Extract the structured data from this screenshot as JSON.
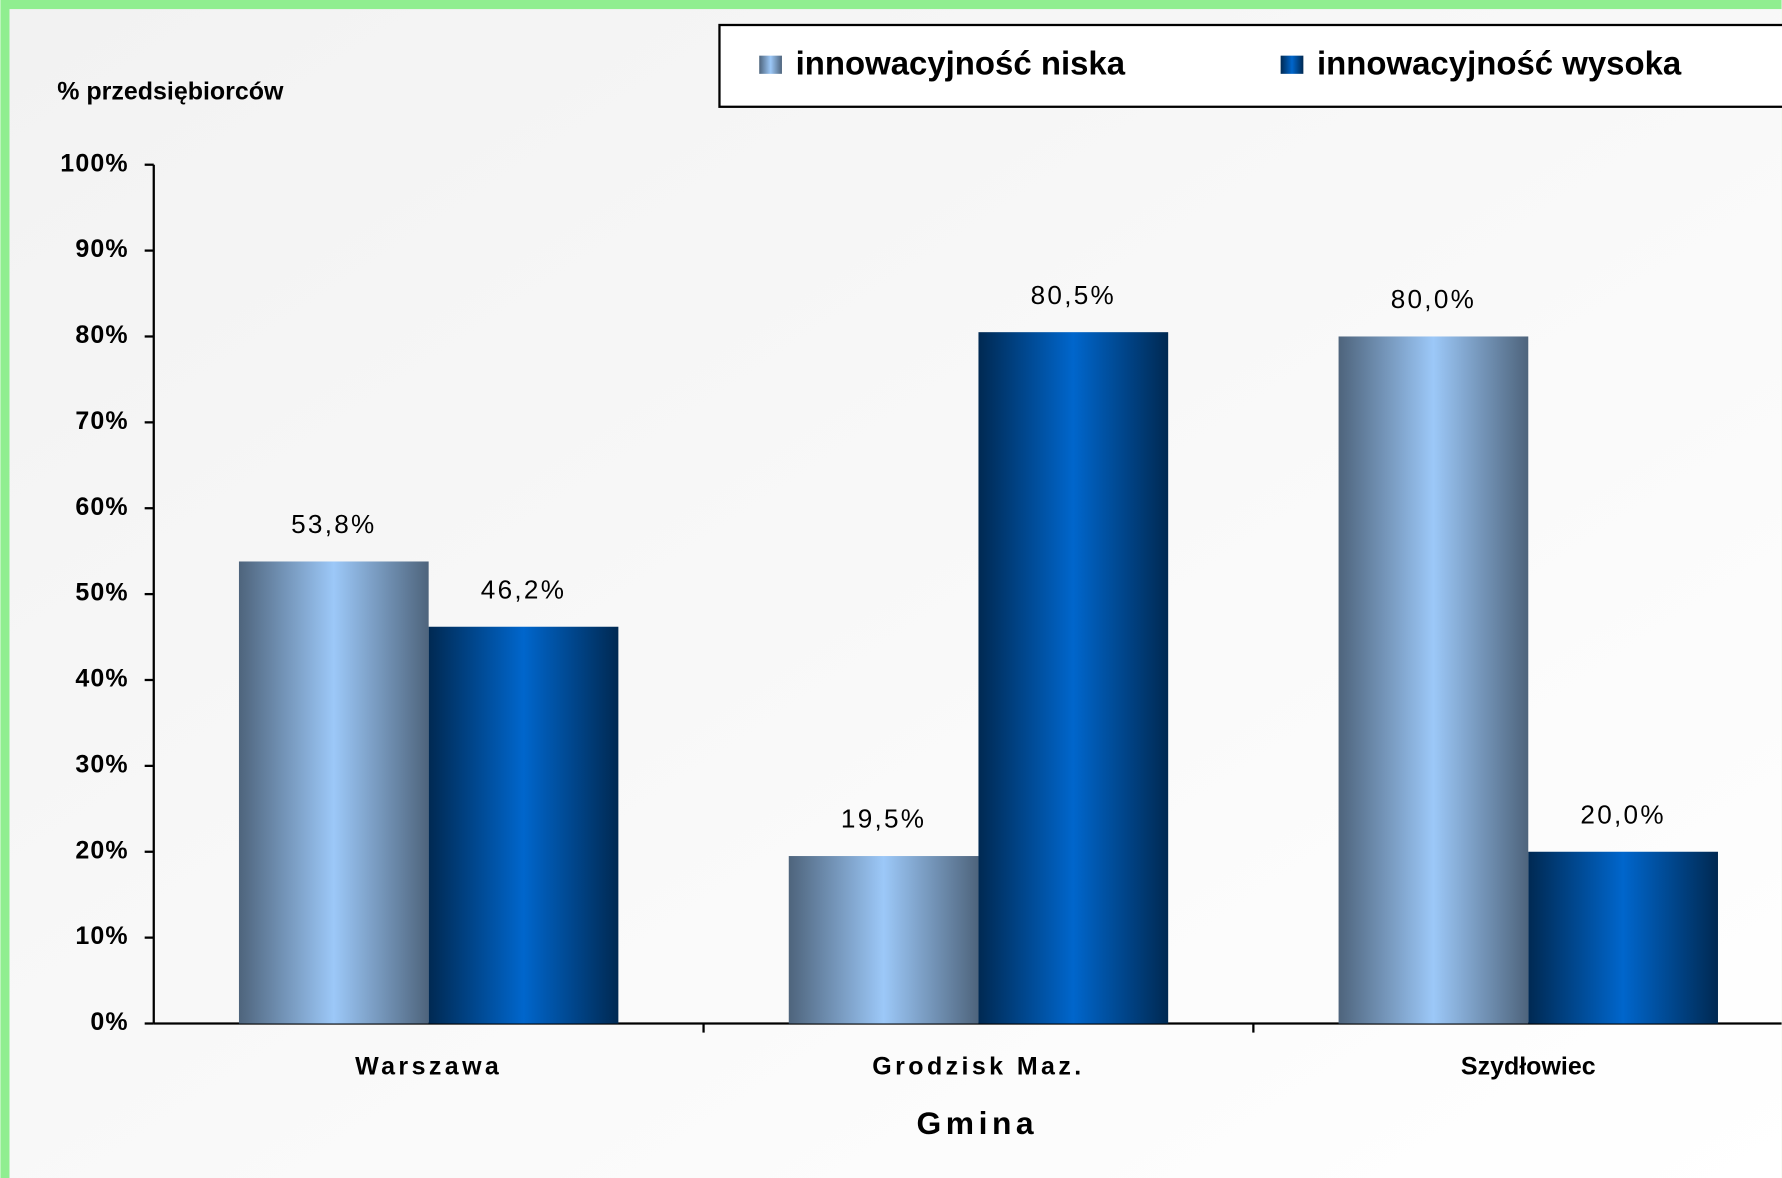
{
  "chart_data": {
    "type": "bar",
    "y_axis_label": "% przedsiębiorców",
    "x_axis_label": "Gmina",
    "categories": [
      "Warszawa",
      "Grodzisk Maz.",
      "Szydłowiec"
    ],
    "series": [
      {
        "name": "innowacyjność niska",
        "color": "#9cc8f8",
        "values": [
          53.8,
          19.5,
          80.0
        ],
        "value_labels": [
          "53,8%",
          "19,5%",
          "80,0%"
        ]
      },
      {
        "name": "innowacyjność wysoka",
        "color": "#0066cc",
        "values": [
          46.2,
          80.5,
          20.0
        ],
        "value_labels": [
          "46,2%",
          "80,5%",
          "20,0%"
        ]
      }
    ],
    "ylim": [
      0,
      100
    ],
    "yticks": [
      {
        "value": 0,
        "label": "0%"
      },
      {
        "value": 10,
        "label": "10%"
      },
      {
        "value": 20,
        "label": "20%"
      },
      {
        "value": 30,
        "label": "30%"
      },
      {
        "value": 40,
        "label": "40%"
      },
      {
        "value": 50,
        "label": "50%"
      },
      {
        "value": 60,
        "label": "60%"
      },
      {
        "value": 70,
        "label": "70%"
      },
      {
        "value": 80,
        "label": "80%"
      },
      {
        "value": 90,
        "label": "90%"
      },
      {
        "value": 100,
        "label": "100%"
      }
    ],
    "grid": false,
    "legend": "top"
  }
}
